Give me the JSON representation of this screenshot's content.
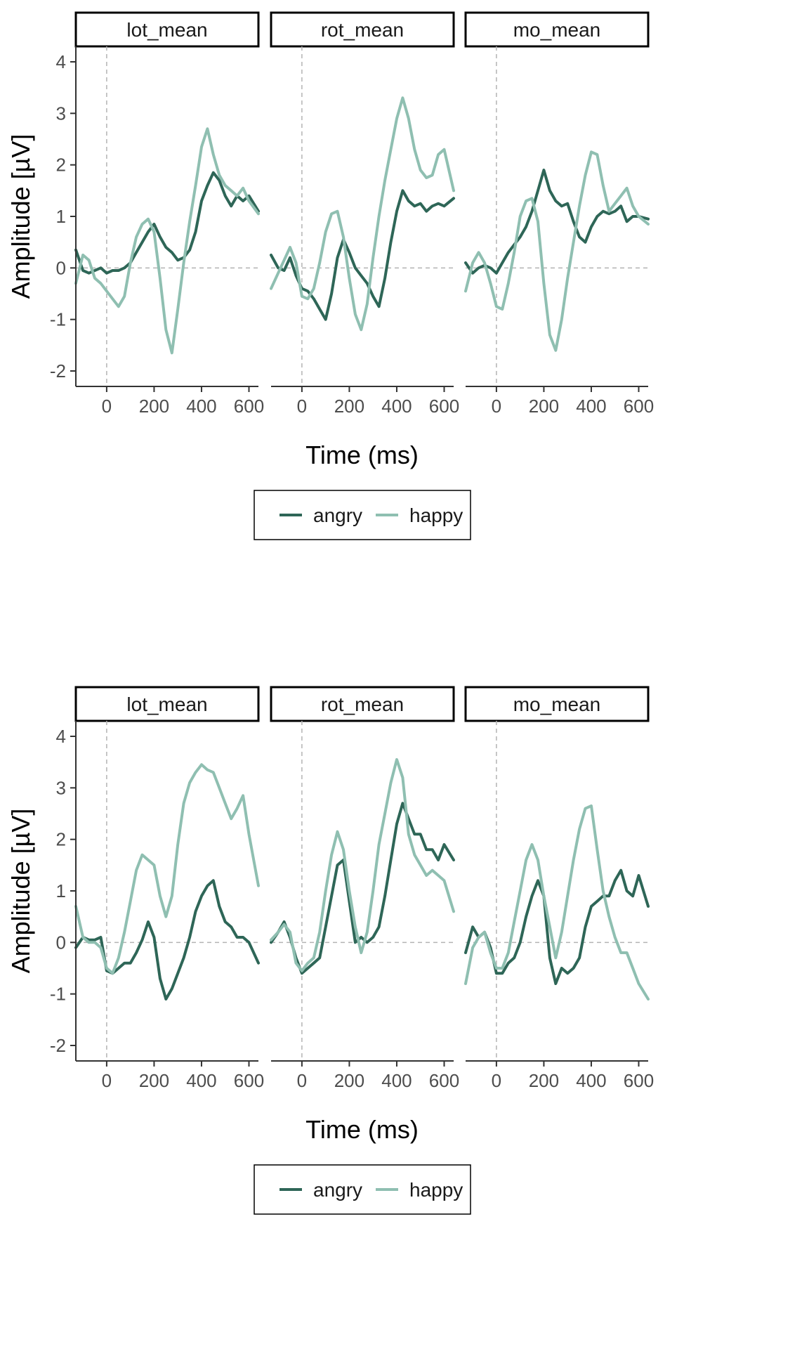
{
  "colors": {
    "angry": "#2e6657",
    "happy": "#8fbfb1",
    "refline": "#b3b3b3",
    "axis": "#333333"
  },
  "legend": {
    "angry_label": "angry",
    "happy_label": "happy"
  },
  "chart_data": [
    {
      "type": "line",
      "facet_layout": "1 row x 3 columns",
      "legend_position": "bottom",
      "grid": false,
      "xlabel": "Time (ms)",
      "ylabel": "Amplitude [µV]",
      "xlim": [
        -130,
        640
      ],
      "ylim": [
        -2.3,
        4.3
      ],
      "xticks": [
        0,
        200,
        400,
        600
      ],
      "yticks": [
        -2,
        -1,
        0,
        1,
        2,
        3,
        4
      ],
      "reference_lines": {
        "x": 0,
        "y": 0
      },
      "panels": [
        {
          "title": "lot_mean",
          "x": [
            -130,
            -100,
            -75,
            -50,
            -25,
            0,
            25,
            50,
            75,
            100,
            125,
            150,
            175,
            200,
            225,
            250,
            275,
            300,
            325,
            350,
            375,
            400,
            425,
            450,
            475,
            500,
            525,
            550,
            575,
            600,
            640
          ],
          "series": [
            {
              "name": "angry",
              "values": [
                0.35,
                -0.05,
                -0.1,
                -0.05,
                0,
                -0.1,
                -0.05,
                -0.05,
                0,
                0.1,
                0.3,
                0.5,
                0.7,
                0.85,
                0.6,
                0.4,
                0.3,
                0.15,
                0.2,
                0.35,
                0.7,
                1.3,
                1.6,
                1.85,
                1.7,
                1.4,
                1.2,
                1.4,
                1.3,
                1.4,
                1.1
              ]
            },
            {
              "name": "happy",
              "values": [
                -0.3,
                0.25,
                0.15,
                -0.2,
                -0.3,
                -0.45,
                -0.6,
                -0.75,
                -0.55,
                0.1,
                0.6,
                0.85,
                0.95,
                0.7,
                -0.2,
                -1.2,
                -1.65,
                -0.8,
                0.1,
                0.9,
                1.6,
                2.35,
                2.7,
                2.2,
                1.8,
                1.6,
                1.5,
                1.4,
                1.55,
                1.3,
                1.05
              ]
            }
          ]
        },
        {
          "title": "rot_mean",
          "x": [
            -130,
            -100,
            -75,
            -50,
            -25,
            0,
            25,
            50,
            75,
            100,
            125,
            150,
            175,
            200,
            225,
            250,
            275,
            300,
            325,
            350,
            375,
            400,
            425,
            450,
            475,
            500,
            525,
            550,
            575,
            600,
            640
          ],
          "series": [
            {
              "name": "angry",
              "values": [
                0.25,
                0,
                -0.05,
                0.2,
                -0.15,
                -0.4,
                -0.45,
                -0.6,
                -0.8,
                -1.0,
                -0.5,
                0.2,
                0.55,
                0.3,
                0,
                -0.15,
                -0.3,
                -0.55,
                -0.75,
                -0.2,
                0.5,
                1.1,
                1.5,
                1.3,
                1.2,
                1.25,
                1.1,
                1.2,
                1.25,
                1.2,
                1.35
              ]
            },
            {
              "name": "happy",
              "values": [
                -0.4,
                -0.1,
                0.15,
                0.4,
                0.1,
                -0.55,
                -0.6,
                -0.4,
                0.1,
                0.7,
                1.05,
                1.1,
                0.6,
                -0.2,
                -0.9,
                -1.2,
                -0.7,
                0.2,
                1.0,
                1.7,
                2.3,
                2.9,
                3.3,
                2.9,
                2.3,
                1.9,
                1.75,
                1.8,
                2.2,
                2.3,
                1.5
              ]
            }
          ]
        },
        {
          "title": "mo_mean",
          "x": [
            -130,
            -100,
            -75,
            -50,
            -25,
            0,
            25,
            50,
            75,
            100,
            125,
            150,
            175,
            200,
            225,
            250,
            275,
            300,
            325,
            350,
            375,
            400,
            425,
            450,
            475,
            500,
            525,
            550,
            575,
            600,
            640
          ],
          "series": [
            {
              "name": "angry",
              "values": [
                0.1,
                -0.1,
                0,
                0.05,
                0,
                -0.1,
                0.1,
                0.3,
                0.45,
                0.6,
                0.8,
                1.1,
                1.5,
                1.9,
                1.5,
                1.3,
                1.2,
                1.25,
                0.9,
                0.6,
                0.5,
                0.8,
                1.0,
                1.1,
                1.05,
                1.1,
                1.2,
                0.9,
                1.0,
                1.0,
                0.95
              ]
            },
            {
              "name": "happy",
              "values": [
                -0.45,
                0.1,
                0.3,
                0.1,
                -0.3,
                -0.75,
                -0.8,
                -0.3,
                0.3,
                1.0,
                1.3,
                1.35,
                0.9,
                -0.3,
                -1.3,
                -1.6,
                -1.0,
                -0.2,
                0.5,
                1.2,
                1.8,
                2.25,
                2.2,
                1.6,
                1.1,
                1.25,
                1.4,
                1.55,
                1.2,
                1.0,
                0.85
              ]
            }
          ]
        }
      ]
    },
    {
      "type": "line",
      "facet_layout": "1 row x 3 columns",
      "legend_position": "bottom",
      "grid": false,
      "xlabel": "Time (ms)",
      "ylabel": "Amplitude [µV]",
      "xlim": [
        -130,
        640
      ],
      "ylim": [
        -2.3,
        4.3
      ],
      "xticks": [
        0,
        200,
        400,
        600
      ],
      "yticks": [
        -2,
        -1,
        0,
        1,
        2,
        3,
        4
      ],
      "reference_lines": {
        "x": 0,
        "y": 0
      },
      "panels": [
        {
          "title": "lot_mean",
          "x": [
            -130,
            -100,
            -75,
            -50,
            -25,
            0,
            25,
            50,
            75,
            100,
            125,
            150,
            175,
            200,
            225,
            250,
            275,
            300,
            325,
            350,
            375,
            400,
            425,
            450,
            475,
            500,
            525,
            550,
            575,
            600,
            640
          ],
          "series": [
            {
              "name": "angry",
              "values": [
                -0.1,
                0.1,
                0.05,
                0.05,
                0.1,
                -0.55,
                -0.6,
                -0.5,
                -0.4,
                -0.4,
                -0.2,
                0.05,
                0.4,
                0.1,
                -0.7,
                -1.1,
                -0.9,
                -0.6,
                -0.3,
                0.1,
                0.6,
                0.9,
                1.1,
                1.2,
                0.7,
                0.4,
                0.3,
                0.1,
                0.1,
                0.0,
                -0.4
              ]
            },
            {
              "name": "happy",
              "values": [
                0.7,
                0.1,
                0.0,
                0.0,
                -0.1,
                -0.5,
                -0.6,
                -0.3,
                0.2,
                0.8,
                1.4,
                1.7,
                1.6,
                1.5,
                0.9,
                0.5,
                0.9,
                1.9,
                2.7,
                3.1,
                3.3,
                3.45,
                3.35,
                3.3,
                3.0,
                2.7,
                2.4,
                2.6,
                2.85,
                2.1,
                1.1
              ]
            }
          ]
        },
        {
          "title": "rot_mean",
          "x": [
            -130,
            -100,
            -75,
            -50,
            -25,
            0,
            25,
            50,
            75,
            100,
            125,
            150,
            175,
            200,
            225,
            250,
            275,
            300,
            325,
            350,
            375,
            400,
            425,
            450,
            475,
            500,
            525,
            550,
            575,
            600,
            640
          ],
          "series": [
            {
              "name": "angry",
              "values": [
                0.0,
                0.2,
                0.4,
                0.1,
                -0.3,
                -0.6,
                -0.5,
                -0.4,
                -0.3,
                0.3,
                0.9,
                1.5,
                1.6,
                0.8,
                0.0,
                0.1,
                0.0,
                0.1,
                0.3,
                0.9,
                1.6,
                2.3,
                2.7,
                2.4,
                2.1,
                2.1,
                1.8,
                1.8,
                1.6,
                1.9,
                1.6
              ]
            },
            {
              "name": "happy",
              "values": [
                0.05,
                0.2,
                0.35,
                0.2,
                -0.4,
                -0.55,
                -0.4,
                -0.3,
                0.2,
                1.0,
                1.7,
                2.15,
                1.8,
                1.0,
                0.3,
                -0.2,
                0.2,
                1.0,
                1.9,
                2.5,
                3.1,
                3.55,
                3.2,
                2.1,
                1.7,
                1.5,
                1.3,
                1.4,
                1.3,
                1.2,
                0.6
              ]
            }
          ]
        },
        {
          "title": "mo_mean",
          "x": [
            -130,
            -100,
            -75,
            -50,
            -25,
            0,
            25,
            50,
            75,
            100,
            125,
            150,
            175,
            200,
            225,
            250,
            275,
            300,
            325,
            350,
            375,
            400,
            425,
            450,
            475,
            500,
            525,
            550,
            575,
            600,
            640
          ],
          "series": [
            {
              "name": "angry",
              "values": [
                -0.2,
                0.3,
                0.1,
                0.2,
                -0.1,
                -0.6,
                -0.6,
                -0.4,
                -0.3,
                0.0,
                0.5,
                0.9,
                1.2,
                0.9,
                -0.3,
                -0.8,
                -0.5,
                -0.6,
                -0.5,
                -0.3,
                0.3,
                0.7,
                0.8,
                0.9,
                0.9,
                1.2,
                1.4,
                1.0,
                0.9,
                1.3,
                0.7
              ]
            },
            {
              "name": "happy",
              "values": [
                -0.8,
                -0.1,
                0.1,
                0.2,
                -0.2,
                -0.5,
                -0.5,
                -0.2,
                0.4,
                1.0,
                1.6,
                1.9,
                1.6,
                0.9,
                0.3,
                -0.3,
                0.2,
                0.9,
                1.6,
                2.2,
                2.6,
                2.65,
                1.8,
                1.0,
                0.5,
                0.1,
                -0.2,
                -0.2,
                -0.5,
                -0.8,
                -1.1
              ]
            }
          ]
        }
      ]
    }
  ]
}
